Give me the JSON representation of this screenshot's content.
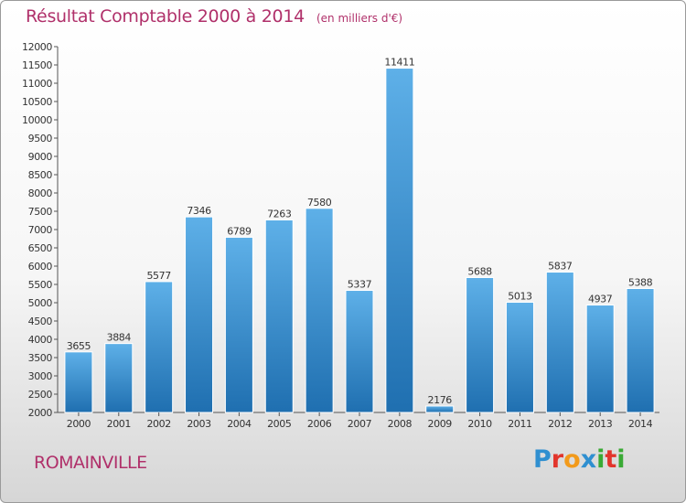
{
  "header": {
    "title": "Résultat Comptable 2000 à 2014",
    "unit": "(en milliers d'€)"
  },
  "footer": {
    "town": "ROMAINVILLE",
    "logo_text": "Proxiti",
    "logo_letters": [
      "P",
      "r",
      "o",
      "x",
      "i",
      "t",
      "i"
    ],
    "logo_colors": [
      "#2f8fd0",
      "#e2352c",
      "#f29a1b",
      "#2f8fd0",
      "#3aaa35",
      "#e2352c",
      "#3aaa35"
    ]
  },
  "colors": {
    "accent": "#b0306a",
    "bar_top": "#5eb0e8",
    "bar_bottom": "#1f6fb0",
    "text": "#333333"
  },
  "chart_data": {
    "type": "bar",
    "title": "Résultat Comptable 2000 à 2014",
    "xlabel": "",
    "ylabel": "",
    "categories": [
      "2000",
      "2001",
      "2002",
      "2003",
      "2004",
      "2005",
      "2006",
      "2007",
      "2008",
      "2009",
      "2010",
      "2011",
      "2012",
      "2013",
      "2014"
    ],
    "values": [
      3655,
      3884,
      5577,
      7346,
      6789,
      7263,
      7580,
      5337,
      11411,
      2176,
      5688,
      5013,
      5837,
      4937,
      5388
    ],
    "ylim": [
      2000,
      12000
    ],
    "yticks": [
      2000,
      2500,
      3000,
      3500,
      4000,
      4500,
      5000,
      5500,
      6000,
      6500,
      7000,
      7500,
      8000,
      8500,
      9000,
      9500,
      10000,
      10500,
      11000,
      11500,
      12000
    ],
    "grid": false,
    "legend": "none"
  }
}
